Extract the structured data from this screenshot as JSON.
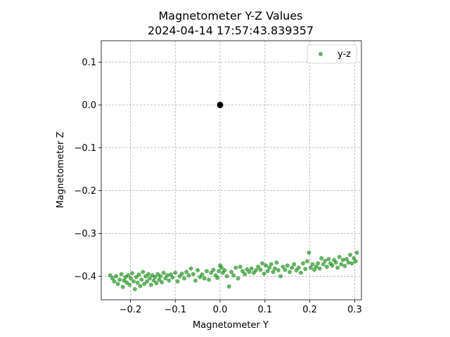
{
  "chart_data": {
    "type": "scatter",
    "title": "Magnetometer Y-Z Values",
    "subtitle": "2024-04-14 17:57:43.839357",
    "xlabel": "Magnetometer Y",
    "ylabel": "Magnetometer Z",
    "xlim": [
      -0.265,
      0.315
    ],
    "ylim": [
      -0.455,
      0.15
    ],
    "x_ticks": [
      -0.2,
      -0.1,
      0.0,
      0.1,
      0.2,
      0.3
    ],
    "x_tick_labels": [
      "−0.2",
      "−0.1",
      "0.0",
      "0.1",
      "0.2",
      "0.3"
    ],
    "y_ticks": [
      0.1,
      0.0,
      -0.1,
      -0.2,
      -0.3,
      -0.4
    ],
    "y_tick_labels": [
      "0.1",
      "0.0",
      "−0.1",
      "−0.2",
      "−0.3",
      "−0.4"
    ],
    "grid": true,
    "legend_position": "top-right",
    "origin_point": {
      "x": 0.0,
      "y": 0.0,
      "color": "#000000"
    },
    "series": [
      {
        "name": "y-z",
        "color": "#008000",
        "points": [
          [
            -0.245,
            -0.398
          ],
          [
            -0.24,
            -0.405
          ],
          [
            -0.236,
            -0.412
          ],
          [
            -0.232,
            -0.4
          ],
          [
            -0.228,
            -0.418
          ],
          [
            -0.224,
            -0.408
          ],
          [
            -0.22,
            -0.395
          ],
          [
            -0.217,
            -0.425
          ],
          [
            -0.214,
            -0.41
          ],
          [
            -0.211,
            -0.402
          ],
          [
            -0.208,
            -0.415
          ],
          [
            -0.205,
            -0.398
          ],
          [
            -0.202,
            -0.42
          ],
          [
            -0.199,
            -0.405
          ],
          [
            -0.196,
            -0.393
          ],
          [
            -0.193,
            -0.412
          ],
          [
            -0.19,
            -0.43
          ],
          [
            -0.187,
            -0.402
          ],
          [
            -0.184,
            -0.415
          ],
          [
            -0.181,
            -0.396
          ],
          [
            -0.178,
            -0.423
          ],
          [
            -0.175,
            -0.408
          ],
          [
            -0.172,
            -0.39
          ],
          [
            -0.169,
            -0.418
          ],
          [
            -0.166,
            -0.4
          ],
          [
            -0.163,
            -0.412
          ],
          [
            -0.16,
            -0.395
          ],
          [
            -0.157,
            -0.405
          ],
          [
            -0.154,
            -0.42
          ],
          [
            -0.151,
            -0.398
          ],
          [
            -0.148,
            -0.41
          ],
          [
            -0.145,
            -0.402
          ],
          [
            -0.142,
            -0.416
          ],
          [
            -0.139,
            -0.395
          ],
          [
            -0.136,
            -0.408
          ],
          [
            -0.133,
            -0.4
          ],
          [
            -0.13,
            -0.414
          ],
          [
            -0.126,
            -0.392
          ],
          [
            -0.122,
            -0.405
          ],
          [
            -0.118,
            -0.398
          ],
          [
            -0.114,
            -0.41
          ],
          [
            -0.11,
            -0.396
          ],
          [
            -0.106,
            -0.403
          ],
          [
            -0.1,
            -0.392
          ],
          [
            -0.095,
            -0.412
          ],
          [
            -0.09,
            -0.4
          ],
          [
            -0.085,
            -0.394
          ],
          [
            -0.08,
            -0.405
          ],
          [
            -0.075,
            -0.39
          ],
          [
            -0.07,
            -0.398
          ],
          [
            -0.065,
            -0.382
          ],
          [
            -0.06,
            -0.395
          ],
          [
            -0.055,
            -0.41
          ],
          [
            -0.05,
            -0.386
          ],
          [
            -0.045,
            -0.402
          ],
          [
            -0.04,
            -0.396
          ],
          [
            -0.035,
            -0.405
          ],
          [
            -0.03,
            -0.388
          ],
          [
            -0.025,
            -0.408
          ],
          [
            -0.02,
            -0.392
          ],
          [
            -0.015,
            -0.385
          ],
          [
            -0.01,
            -0.398
          ],
          [
            -0.006,
            -0.404
          ],
          [
            -0.003,
            -0.388
          ],
          [
            0.0,
            -0.375
          ],
          [
            0.003,
            -0.38
          ],
          [
            0.006,
            -0.392
          ],
          [
            0.01,
            -0.386
          ],
          [
            0.015,
            -0.4
          ],
          [
            0.02,
            -0.424
          ],
          [
            0.025,
            -0.39
          ],
          [
            0.03,
            -0.398
          ],
          [
            0.035,
            -0.38
          ],
          [
            0.04,
            -0.405
          ],
          [
            0.045,
            -0.378
          ],
          [
            0.05,
            -0.388
          ],
          [
            0.055,
            -0.395
          ],
          [
            0.06,
            -0.384
          ],
          [
            0.065,
            -0.39
          ],
          [
            0.07,
            -0.382
          ],
          [
            0.075,
            -0.392
          ],
          [
            0.08,
            -0.386
          ],
          [
            0.085,
            -0.378
          ],
          [
            0.09,
            -0.385
          ],
          [
            0.094,
            -0.37
          ],
          [
            0.098,
            -0.394
          ],
          [
            0.102,
            -0.375
          ],
          [
            0.106,
            -0.388
          ],
          [
            0.11,
            -0.38
          ],
          [
            0.114,
            -0.372
          ],
          [
            0.118,
            -0.39
          ],
          [
            0.122,
            -0.382
          ],
          [
            0.126,
            -0.368
          ],
          [
            0.13,
            -0.386
          ],
          [
            0.135,
            -0.4
          ],
          [
            0.14,
            -0.378
          ],
          [
            0.145,
            -0.385
          ],
          [
            0.15,
            -0.375
          ],
          [
            0.155,
            -0.39
          ],
          [
            0.16,
            -0.38
          ],
          [
            0.165,
            -0.372
          ],
          [
            0.17,
            -0.386
          ],
          [
            0.175,
            -0.38
          ],
          [
            0.18,
            -0.392
          ],
          [
            0.185,
            -0.37
          ],
          [
            0.19,
            -0.383
          ],
          [
            0.194,
            -0.365
          ],
          [
            0.198,
            -0.345
          ],
          [
            0.202,
            -0.38
          ],
          [
            0.206,
            -0.372
          ],
          [
            0.21,
            -0.385
          ],
          [
            0.214,
            -0.378
          ],
          [
            0.218,
            -0.37
          ],
          [
            0.222,
            -0.382
          ],
          [
            0.226,
            -0.358
          ],
          [
            0.23,
            -0.372
          ],
          [
            0.234,
            -0.364
          ],
          [
            0.238,
            -0.378
          ],
          [
            0.242,
            -0.36
          ],
          [
            0.246,
            -0.37
          ],
          [
            0.25,
            -0.375
          ],
          [
            0.254,
            -0.362
          ],
          [
            0.258,
            -0.368
          ],
          [
            0.262,
            -0.38
          ],
          [
            0.266,
            -0.355
          ],
          [
            0.27,
            -0.372
          ],
          [
            0.274,
            -0.362
          ],
          [
            0.278,
            -0.376
          ],
          [
            0.282,
            -0.36
          ],
          [
            0.286,
            -0.368
          ],
          [
            0.29,
            -0.35
          ],
          [
            0.294,
            -0.37
          ],
          [
            0.298,
            -0.358
          ],
          [
            0.302,
            -0.365
          ],
          [
            0.305,
            -0.345
          ]
        ]
      }
    ]
  }
}
